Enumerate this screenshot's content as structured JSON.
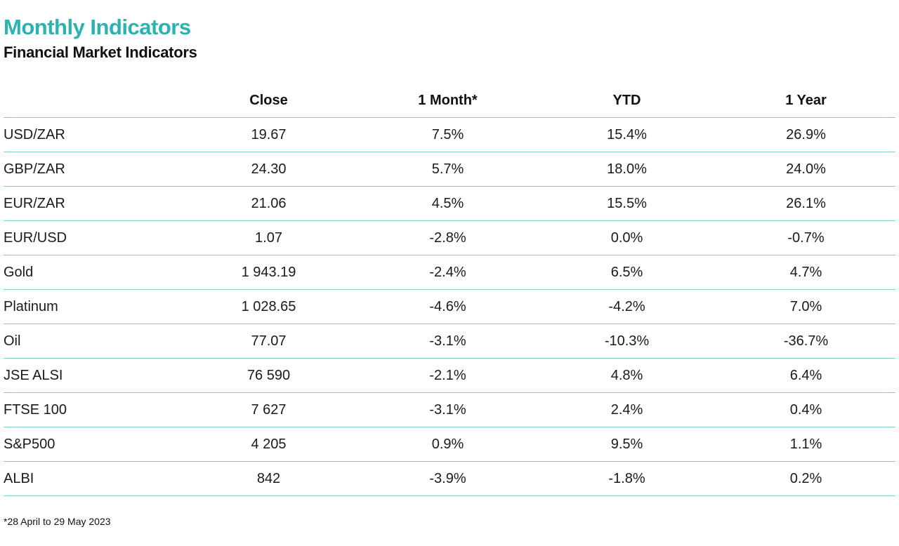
{
  "header": {
    "title": "Monthly Indicators",
    "subtitle": "Financial Market Indicators"
  },
  "table": {
    "columns": [
      "",
      "Close",
      "1 Month*",
      "YTD",
      "1 Year"
    ],
    "rows": [
      {
        "name": "USD/ZAR",
        "close": "19.67",
        "month": "7.5%",
        "ytd": "15.4%",
        "year": "26.9%"
      },
      {
        "name": "GBP/ZAR",
        "close": "24.30",
        "month": "5.7%",
        "ytd": "18.0%",
        "year": "24.0%"
      },
      {
        "name": "EUR/ZAR",
        "close": "21.06",
        "month": "4.5%",
        "ytd": "15.5%",
        "year": "26.1%"
      },
      {
        "name": "EUR/USD",
        "close": "1.07",
        "month": "-2.8%",
        "ytd": "0.0%",
        "year": "-0.7%"
      },
      {
        "name": "Gold",
        "close": "1 943.19",
        "month": "-2.4%",
        "ytd": "6.5%",
        "year": "4.7%"
      },
      {
        "name": "Platinum",
        "close": "1 028.65",
        "month": "-4.6%",
        "ytd": "-4.2%",
        "year": "7.0%"
      },
      {
        "name": "Oil",
        "close": "77.07",
        "month": "-3.1%",
        "ytd": "-10.3%",
        "year": "-36.7%"
      },
      {
        "name": "JSE ALSI",
        "close": "76 590",
        "month": "-2.1%",
        "ytd": "4.8%",
        "year": "6.4%"
      },
      {
        "name": "FTSE 100",
        "close": "7 627",
        "month": "-3.1%",
        "ytd": "2.4%",
        "year": "0.4%"
      },
      {
        "name": "S&P500",
        "close": "4 205",
        "month": "0.9%",
        "ytd": "9.5%",
        "year": "1.1%"
      },
      {
        "name": "ALBI",
        "close": "842",
        "month": "-3.9%",
        "ytd": "-1.8%",
        "year": "0.2%"
      }
    ]
  },
  "footnote": "*28 April to 29 May 2023",
  "colors": {
    "title": "#2ab3b1",
    "divider": "#7fcfcd",
    "text": "#1a1a1a"
  }
}
